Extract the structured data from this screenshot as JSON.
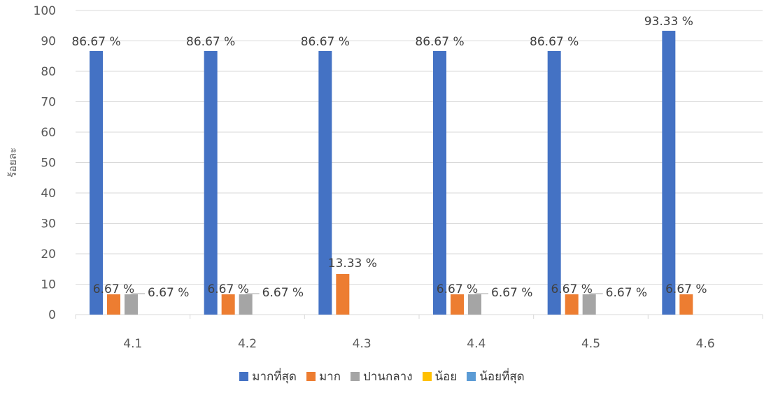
{
  "chart_data": {
    "type": "bar",
    "ylabel": "ร้อยละ",
    "xlabel": "",
    "ylim": [
      0,
      100
    ],
    "yticks": [
      0,
      10,
      20,
      30,
      40,
      50,
      60,
      70,
      80,
      90,
      100
    ],
    "grid": true,
    "legend_position": "bottom",
    "categories": [
      "4.1",
      "4.2",
      "4.3",
      "4.4",
      "4.5",
      "4.6"
    ],
    "series": [
      {
        "name": "มากที่สุด",
        "color": "#4472C4",
        "values": [
          86.67,
          86.67,
          86.67,
          86.67,
          86.67,
          93.33
        ],
        "labels": [
          "86.67 %",
          "86.67 %",
          "86.67 %",
          "86.67 %",
          "86.67 %",
          "93.33 %"
        ]
      },
      {
        "name": "มาก",
        "color": "#ED7D31",
        "values": [
          6.67,
          6.67,
          13.33,
          6.67,
          6.67,
          6.67
        ],
        "labels": [
          "6.67 %",
          "6.67 %",
          "13.33 %",
          "6.67 %",
          "6.67 %",
          "6.67 %"
        ]
      },
      {
        "name": "ปานกลาง",
        "color": "#A5A5A5",
        "values": [
          6.67,
          6.67,
          0,
          6.67,
          6.67,
          0
        ],
        "labels": [
          "6.67 %",
          "6.67 %",
          "",
          "6.67 %",
          "6.67 %",
          ""
        ]
      },
      {
        "name": "น้อย",
        "color": "#FFC000",
        "values": [
          0,
          0,
          0,
          0,
          0,
          0
        ],
        "labels": [
          "",
          "",
          "",
          "",
          "",
          ""
        ]
      },
      {
        "name": "น้อยที่สุด",
        "color": "#5B9BD5",
        "values": [
          0,
          0,
          0,
          0,
          0,
          0
        ],
        "labels": [
          "",
          "",
          "",
          "",
          "",
          ""
        ]
      }
    ]
  }
}
